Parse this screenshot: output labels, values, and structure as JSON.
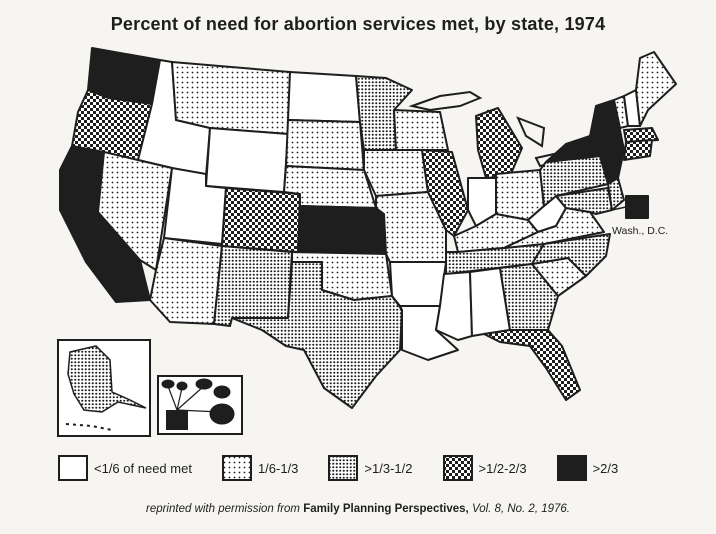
{
  "title": "Percent of need for abortion services met, by state, 1974",
  "colors": {
    "background": "#f6f5f1",
    "ink": "#1e1e1e",
    "none": "#ffffff",
    "fine_dots": "#d8d8d8",
    "dense_dots": "#9a9a9a",
    "checker": "#555555",
    "solid": "#1e1e1e"
  },
  "legend": [
    {
      "key": "c1",
      "label": "<1/6 of need met",
      "fill": "white"
    },
    {
      "key": "c2",
      "label": "1/6-1/3",
      "fill": "fine-dot-pattern"
    },
    {
      "key": "c3",
      "label": ">1/3-1/2",
      "fill": "dense-dot-pattern"
    },
    {
      "key": "c4",
      "label": ">1/2-2/3",
      "fill": "checker-pattern"
    },
    {
      "key": "c5",
      "label": ">2/3",
      "fill": "solid-black"
    }
  ],
  "dc_label": "Wash., D.C.",
  "credit": {
    "prefix": "reprinted with permission from ",
    "publication": "Family Planning Perspectives,",
    "citation": " Vol. 8, No. 2, 1976."
  }
}
